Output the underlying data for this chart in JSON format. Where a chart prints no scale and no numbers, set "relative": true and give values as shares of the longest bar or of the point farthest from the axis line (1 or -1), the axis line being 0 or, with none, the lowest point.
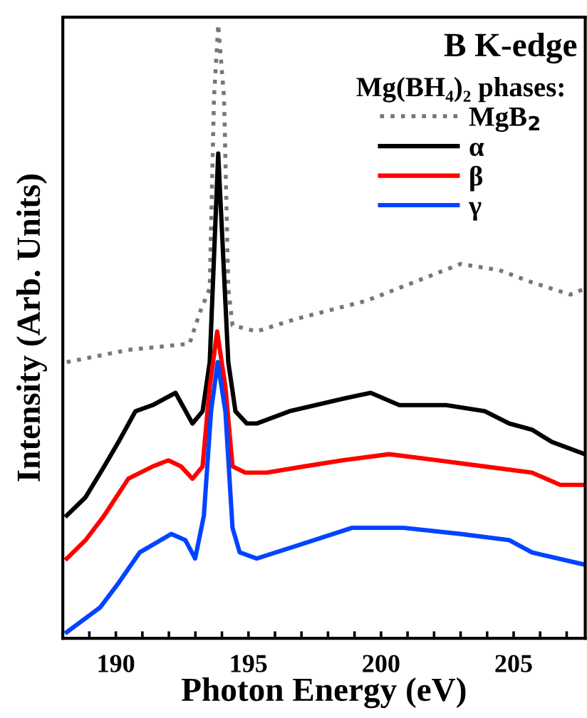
{
  "chart_data": {
    "type": "line",
    "relative": true,
    "xlabel": "Photon Energy (eV)",
    "ylabel": "Intensity (Arb. Units)",
    "annotations": [
      "B K-edge"
    ],
    "legend_title": "Mg(BH₄)₂ phases:",
    "legend": "top right",
    "grid": false,
    "tick_labels": "x",
    "xlim": [
      188,
      207.7
    ],
    "xticks": [
      {
        "value": 188,
        "label": null
      },
      {
        "value": 189,
        "label": null
      },
      190,
      {
        "value": 191,
        "label": null
      },
      {
        "value": 192,
        "label": null
      },
      {
        "value": 193,
        "label": null
      },
      {
        "value": 194,
        "label": null
      },
      195,
      {
        "value": 196,
        "label": null
      },
      {
        "value": 197,
        "label": null
      },
      {
        "value": 198,
        "label": null
      },
      {
        "value": 199,
        "label": null
      },
      200,
      {
        "value": 201,
        "label": null
      },
      {
        "value": 202,
        "label": null
      },
      {
        "value": 203,
        "label": null
      },
      {
        "value": 204,
        "label": null
      },
      205,
      {
        "value": 206,
        "label": null
      },
      {
        "value": 207,
        "label": null
      }
    ],
    "series": [
      {
        "name": "MgB$_{2}$",
        "color": "#777777",
        "line_style": "dotted",
        "x": [
          188.15,
          190.47,
          192.78,
          193.16,
          193.54,
          193.7,
          193.86,
          194.08,
          194.24,
          194.4,
          195.31,
          196.76,
          199.45,
          201.23,
          203.0,
          204.45,
          205.69,
          207.14,
          207.7
        ],
        "values": [
          0.45,
          0.47,
          0.48,
          0.53,
          0.57,
          0.88,
          1.0,
          0.88,
          0.57,
          0.51,
          0.5,
          0.52,
          0.55,
          0.58,
          0.61,
          0.6,
          0.58,
          0.56,
          0.57
        ]
      },
      {
        "name": "α",
        "color": "#000000",
        "line_style": "solid",
        "x": [
          188.15,
          188.86,
          189.56,
          190.1,
          190.74,
          191.39,
          192.25,
          192.89,
          193.27,
          193.54,
          193.86,
          194.24,
          194.51,
          194.94,
          195.31,
          196.55,
          198.54,
          199.61,
          200.69,
          202.46,
          203.91,
          204.83,
          205.69,
          206.44,
          207.68
        ],
        "values": [
          0.2,
          0.23,
          0.28,
          0.32,
          0.37,
          0.38,
          0.4,
          0.35,
          0.37,
          0.45,
          0.79,
          0.45,
          0.37,
          0.35,
          0.35,
          0.37,
          0.39,
          0.4,
          0.38,
          0.38,
          0.37,
          0.35,
          0.34,
          0.32,
          0.3
        ]
      },
      {
        "name": "β",
        "color": "#ff0000",
        "line_style": "solid",
        "x": [
          188.15,
          188.86,
          189.56,
          190.47,
          191.39,
          191.98,
          192.46,
          192.89,
          193.27,
          193.54,
          193.82,
          194.13,
          194.4,
          194.88,
          195.69,
          197.09,
          198.54,
          200.31,
          202.14,
          203.91,
          205.69,
          206.76,
          207.68
        ],
        "values": [
          0.13,
          0.16,
          0.2,
          0.26,
          0.28,
          0.29,
          0.28,
          0.26,
          0.28,
          0.41,
          0.5,
          0.41,
          0.28,
          0.27,
          0.27,
          0.28,
          0.29,
          0.3,
          0.29,
          0.28,
          0.27,
          0.25,
          0.25
        ]
      },
      {
        "name": "γ",
        "color": "#0044ff",
        "line_style": "solid",
        "x": [
          188.15,
          189.4,
          190.1,
          190.9,
          192.09,
          192.62,
          192.99,
          193.32,
          193.59,
          193.84,
          194.13,
          194.4,
          194.67,
          195.31,
          196.76,
          198.91,
          200.85,
          203.0,
          204.83,
          205.69,
          207.68
        ],
        "values": [
          0.01,
          0.05,
          0.09,
          0.14,
          0.17,
          0.16,
          0.13,
          0.2,
          0.37,
          0.45,
          0.37,
          0.18,
          0.14,
          0.13,
          0.15,
          0.18,
          0.18,
          0.17,
          0.16,
          0.14,
          0.12
        ]
      }
    ]
  }
}
